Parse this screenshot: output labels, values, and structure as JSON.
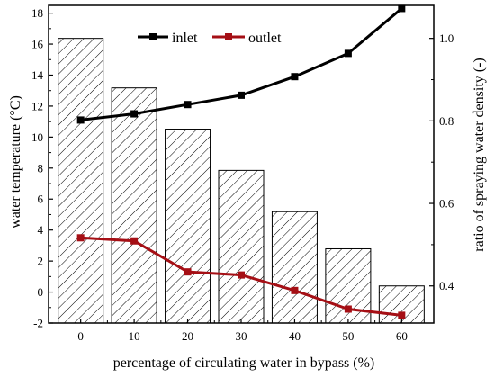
{
  "chart_data": {
    "type": "bar+line",
    "categories": [
      "0",
      "10",
      "20",
      "30",
      "40",
      "50",
      "60"
    ],
    "x": [
      0,
      10,
      20,
      30,
      40,
      50,
      60
    ],
    "xlabel": "percentage of circulating water in bypass (%)",
    "ylabel_left": "water temperature (°C)",
    "ylabel_right": "ratio of spraying water density (-)",
    "ylim_left": [
      -2,
      18.5
    ],
    "yticks_left": [
      -2,
      0,
      2,
      4,
      6,
      8,
      10,
      12,
      14,
      16,
      18
    ],
    "ylim_right": [
      0.31,
      1.08
    ],
    "yticks_right": [
      "0.4",
      "0.6",
      "0.8",
      "1.0"
    ],
    "bars": {
      "axis": "right",
      "values": [
        1.0,
        0.88,
        0.78,
        0.68,
        0.58,
        0.49,
        0.4
      ],
      "pattern": "diagonal-hatch"
    },
    "series": [
      {
        "name": "inlet",
        "axis": "left",
        "color": "#000000",
        "marker": "square",
        "values": [
          11.1,
          11.5,
          12.1,
          12.7,
          13.9,
          15.4,
          18.3
        ]
      },
      {
        "name": "outlet",
        "axis": "left",
        "color": "#a50f15",
        "marker": "square",
        "values": [
          3.5,
          3.3,
          1.3,
          1.1,
          0.1,
          -1.1,
          -1.5
        ]
      }
    ],
    "legend_position": "top-left",
    "grid": false
  }
}
